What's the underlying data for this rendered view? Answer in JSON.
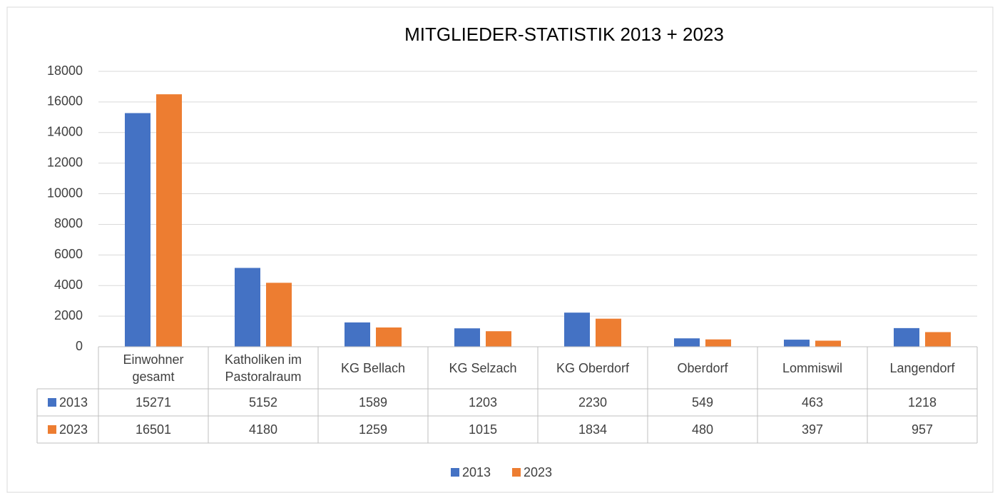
{
  "chart_data": {
    "type": "bar",
    "title": "MITGLIEDER-STATISTIK 2013 + 2023",
    "categories": [
      "Einwohner gesamt",
      "Katholiken im Pastoralraum",
      "KG Bellach",
      "KG Selzach",
      "KG Oberdorf",
      "Oberdorf",
      "Lommiswil",
      "Langendorf"
    ],
    "series": [
      {
        "name": "2013",
        "color": "#4472c4",
        "values": [
          15271,
          5152,
          1589,
          1203,
          2230,
          549,
          463,
          1218
        ]
      },
      {
        "name": "2023",
        "color": "#ed7d31",
        "values": [
          16501,
          4180,
          1259,
          1015,
          1834,
          480,
          397,
          957
        ]
      }
    ],
    "ylim": [
      0,
      18000
    ],
    "yticks": [
      0,
      2000,
      4000,
      6000,
      8000,
      10000,
      12000,
      14000,
      16000,
      18000
    ],
    "grid": true,
    "legend": "bottom",
    "data_table": true
  }
}
